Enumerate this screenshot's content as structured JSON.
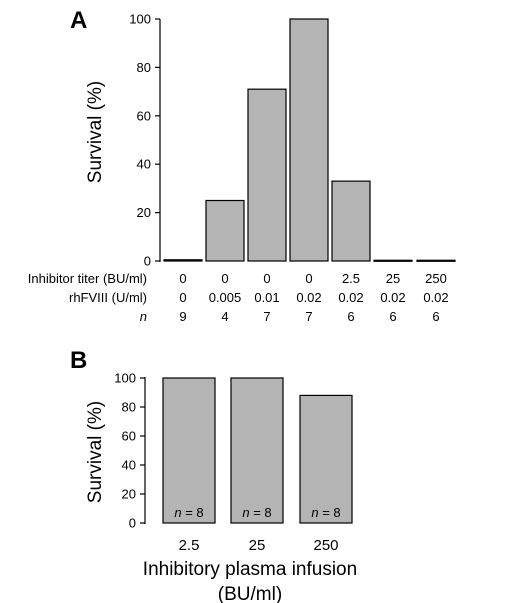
{
  "chart_data": [
    {
      "type": "bar",
      "panel": "A",
      "ylabel": "Survival (%)",
      "ylim": [
        0,
        100
      ],
      "yticks": [
        "0",
        "20",
        "40",
        "60",
        "80",
        "100"
      ],
      "values": [
        0.5,
        25,
        71,
        100,
        33,
        0.3,
        0.3
      ],
      "table_rows": [
        {
          "label": "Inhibitor titer (BU/ml)",
          "italic": false,
          "cells": [
            "0",
            "0",
            "0",
            "0",
            "2.5",
            "25",
            "250"
          ]
        },
        {
          "label": "rhFVIII (U/ml)",
          "italic": false,
          "cells": [
            "0",
            "0.005",
            "0.01",
            "0.02",
            "0.02",
            "0.02",
            "0.02"
          ]
        },
        {
          "label": "n",
          "italic": true,
          "cells": [
            "9",
            "4",
            "7",
            "7",
            "6",
            "6",
            "6"
          ]
        }
      ]
    },
    {
      "type": "bar",
      "panel": "B",
      "ylabel": "Survival (%)",
      "ylim": [
        0,
        100
      ],
      "yticks": [
        "0",
        "20",
        "40",
        "60",
        "80",
        "100"
      ],
      "categories": [
        "2.5",
        "25",
        "250"
      ],
      "values": [
        100,
        100,
        88
      ],
      "bar_labels": [
        "n = 8",
        "n = 8",
        "n = 8"
      ],
      "xlabel_line1": "Inhibitory plasma infusion",
      "xlabel_line2": "(BU/ml)"
    }
  ]
}
